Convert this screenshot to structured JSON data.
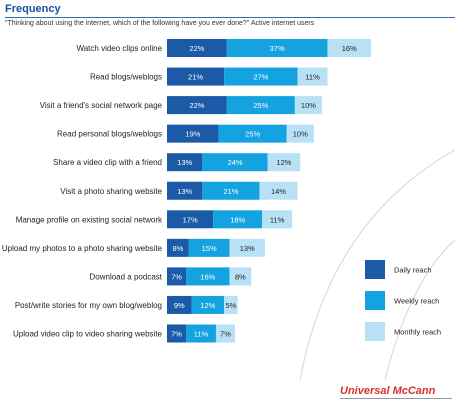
{
  "chart_data": {
    "type": "bar",
    "stacked": true,
    "orientation": "horizontal",
    "title": "Frequency",
    "subtitle": "\"Thinking about using the internet, which of the following have you ever done?\" Active internet users",
    "categories": [
      "Watch video clips online",
      "Read blogs/weblogs",
      "Visit a friend's social network page",
      "Read personal blogs/weblogs",
      "Share a video clip with a friend",
      "Visit a photo sharing website",
      "Manage profile on existing social network",
      "Upload my photos to a photo sharing website",
      "Download a podcast",
      "Post/write stories for my own blog/weblog",
      "Upload video clip to video sharing website"
    ],
    "series": [
      {
        "name": "Daily reach",
        "color": "#1a5aa6",
        "values": [
          22,
          21,
          22,
          19,
          13,
          13,
          17,
          8,
          7,
          9,
          7
        ]
      },
      {
        "name": "Weekly reach",
        "color": "#14a3e0",
        "values": [
          37,
          27,
          25,
          25,
          24,
          21,
          18,
          15,
          16,
          12,
          11
        ]
      },
      {
        "name": "Monthly reach",
        "color": "#b9e1f6",
        "values": [
          16,
          11,
          10,
          10,
          12,
          14,
          11,
          13,
          8,
          5,
          7
        ]
      }
    ],
    "value_suffix": "%",
    "legend_position": "bottom-right",
    "grid": false
  },
  "brand": "Universal McCann"
}
